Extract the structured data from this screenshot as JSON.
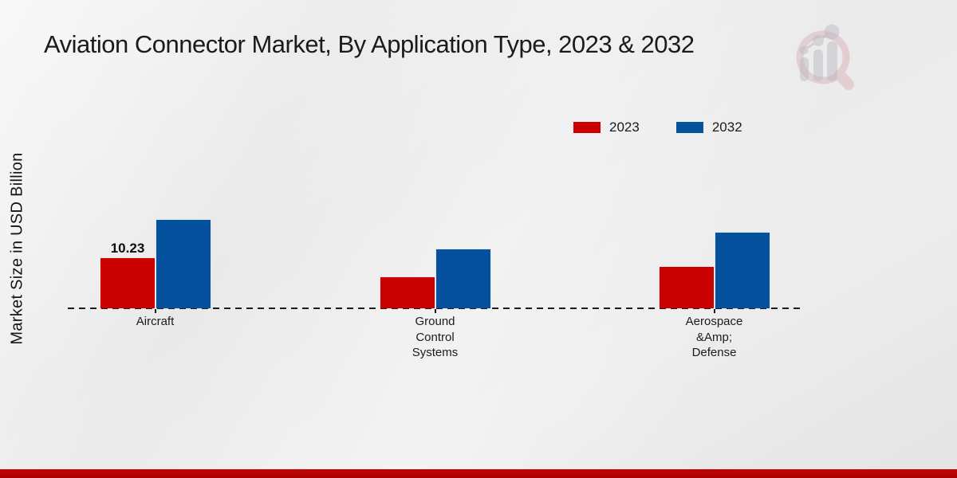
{
  "title": "Aviation Connector Market, By Application Type, 2023 & 2032",
  "ylabel": "Market Size in USD Billion",
  "legend": [
    {
      "label": "2023",
      "color": "#c90201"
    },
    {
      "label": "2032",
      "color": "#05519d"
    }
  ],
  "chart_data": {
    "type": "bar",
    "categories": [
      "Aircraft",
      "Ground Control Systems",
      "Aerospace &Amp; Defense"
    ],
    "category_label_lines": [
      [
        "Aircraft"
      ],
      [
        "Ground",
        "Control",
        "Systems"
      ],
      [
        "Aerospace",
        "&Amp;",
        "Defense"
      ]
    ],
    "series": [
      {
        "name": "2023",
        "color": "#c90201",
        "values": [
          10.23,
          6.4,
          8.5
        ]
      },
      {
        "name": "2032",
        "color": "#05519d",
        "values": [
          17.8,
          11.9,
          15.3
        ]
      }
    ],
    "bar_label": {
      "series": "2023",
      "category": "Aircraft",
      "text": "10.23"
    },
    "ylabel": "Market Size in USD Billion",
    "ylim": [
      0,
      20
    ],
    "grid": false,
    "baseline_style": "dashed",
    "legend_position": "upper-right",
    "only_labeled_value_note": "10.23 is the only printed data label; other values estimated from bar heights"
  },
  "watermark_icon": "magnifier-growth-chart-logo",
  "footer": {
    "accent_color": "#b00301"
  }
}
